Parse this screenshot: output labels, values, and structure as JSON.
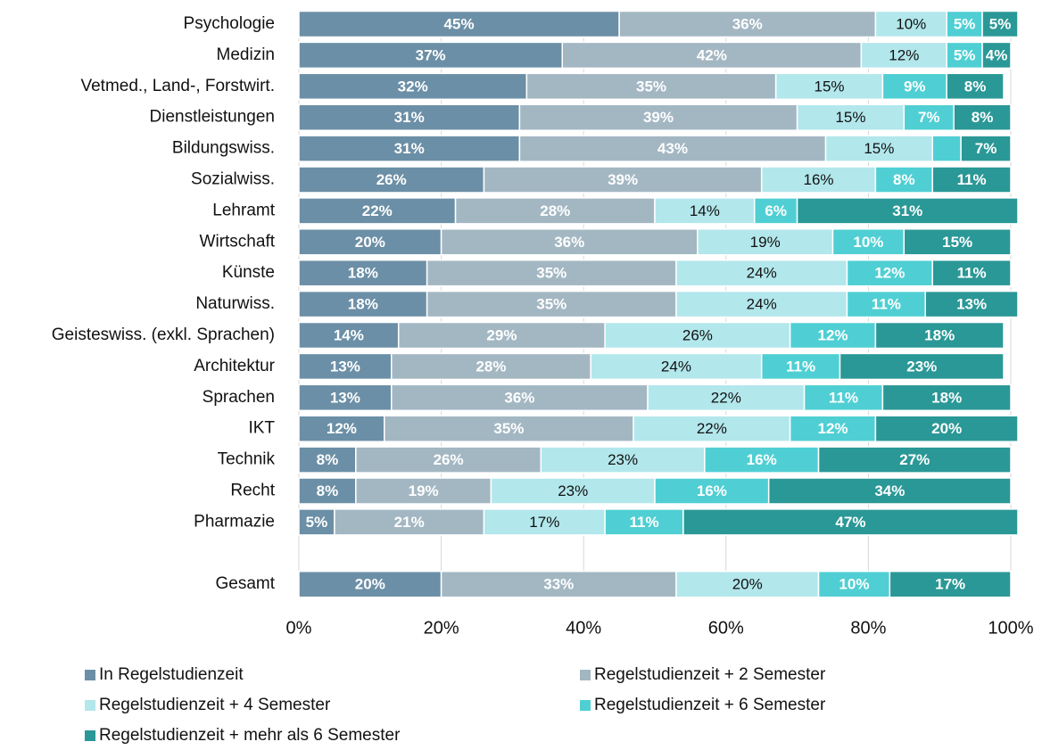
{
  "chart_data": {
    "type": "bar",
    "orientation": "horizontal",
    "stacked": true,
    "categories": [
      "Psychologie",
      "Medizin",
      "Vetmed., Land-, Forstwirt.",
      "Dienstleistungen",
      "Bildungswiss.",
      "Sozialwiss.",
      "Lehramt",
      "Wirtschaft",
      "Künste",
      "Naturwiss.",
      "Geisteswiss. (exkl. Sprachen)",
      "Architektur",
      "Sprachen",
      "IKT",
      "Technik",
      "Recht",
      "Pharmazie",
      null,
      "Gesamt"
    ],
    "series": [
      {
        "name": "In Regelstudienzeit",
        "color": "#6b8fa6",
        "values": [
          45,
          37,
          32,
          31,
          31,
          26,
          22,
          20,
          18,
          18,
          14,
          13,
          13,
          12,
          8,
          8,
          5,
          null,
          20
        ],
        "value_labels": [
          "45%",
          "37%",
          "32%",
          "31%",
          "31%",
          "26%",
          "22%",
          "20%",
          "18%",
          "18%",
          "14%",
          "13%",
          "13%",
          "12%",
          "8%",
          "8%",
          "5%",
          null,
          "20%"
        ]
      },
      {
        "name": "Regelstudienzeit + 2 Semester",
        "color": "#a3b7c3",
        "values": [
          36,
          42,
          35,
          39,
          43,
          39,
          28,
          36,
          35,
          35,
          29,
          28,
          36,
          35,
          26,
          19,
          21,
          null,
          33
        ],
        "value_labels": [
          "36%",
          "42%",
          "35%",
          "39%",
          "43%",
          "39%",
          "28%",
          "36%",
          "35%",
          "35%",
          "29%",
          "28%",
          "36%",
          "35%",
          "26%",
          "19%",
          "21%",
          null,
          "33%"
        ]
      },
      {
        "name": "Regelstudienzeit + 4 Semester",
        "color": "#b2e7ec",
        "values": [
          10,
          12,
          15,
          15,
          15,
          16,
          14,
          19,
          24,
          24,
          26,
          24,
          22,
          22,
          23,
          23,
          17,
          null,
          20
        ],
        "value_labels": [
          "10%",
          "12%",
          "15%",
          "15%",
          "15%",
          "16%",
          "14%",
          "19%",
          "24%",
          "24%",
          "26%",
          "24%",
          "22%",
          "22%",
          "23%",
          "23%",
          "17%",
          null,
          "20%"
        ]
      },
      {
        "name": "Regelstudienzeit + 6 Semester",
        "color": "#4fcfd3",
        "values": [
          5,
          5,
          9,
          7,
          4,
          8,
          6,
          10,
          12,
          11,
          12,
          11,
          11,
          12,
          16,
          16,
          11,
          null,
          10
        ],
        "value_labels": [
          "5%",
          "5%",
          "9%",
          "7%",
          null,
          "8%",
          "6%",
          "10%",
          "12%",
          "11%",
          "12%",
          "11%",
          "11%",
          "12%",
          "16%",
          "16%",
          "11%",
          null,
          "10%"
        ]
      },
      {
        "name": "Regelstudienzeit + mehr als 6 Semester",
        "color": "#2a9896",
        "values": [
          5,
          4,
          8,
          8,
          7,
          11,
          31,
          15,
          11,
          13,
          18,
          23,
          18,
          20,
          27,
          34,
          47,
          null,
          17
        ],
        "value_labels": [
          "5%",
          "4%",
          "8%",
          "8%",
          "7%",
          "11%",
          "31%",
          "15%",
          "11%",
          "13%",
          "18%",
          "23%",
          "18%",
          "20%",
          "27%",
          "34%",
          "47%",
          null,
          "17%"
        ]
      }
    ],
    "xlim": [
      0,
      100
    ],
    "xticks": [
      {
        "value": 0,
        "label": "0%"
      },
      {
        "value": 20,
        "label": "20%"
      },
      {
        "value": 40,
        "label": "40%"
      },
      {
        "value": 60,
        "label": "60%"
      },
      {
        "value": 80,
        "label": "80%"
      },
      {
        "value": 100,
        "label": "100%"
      }
    ],
    "grid": true
  }
}
